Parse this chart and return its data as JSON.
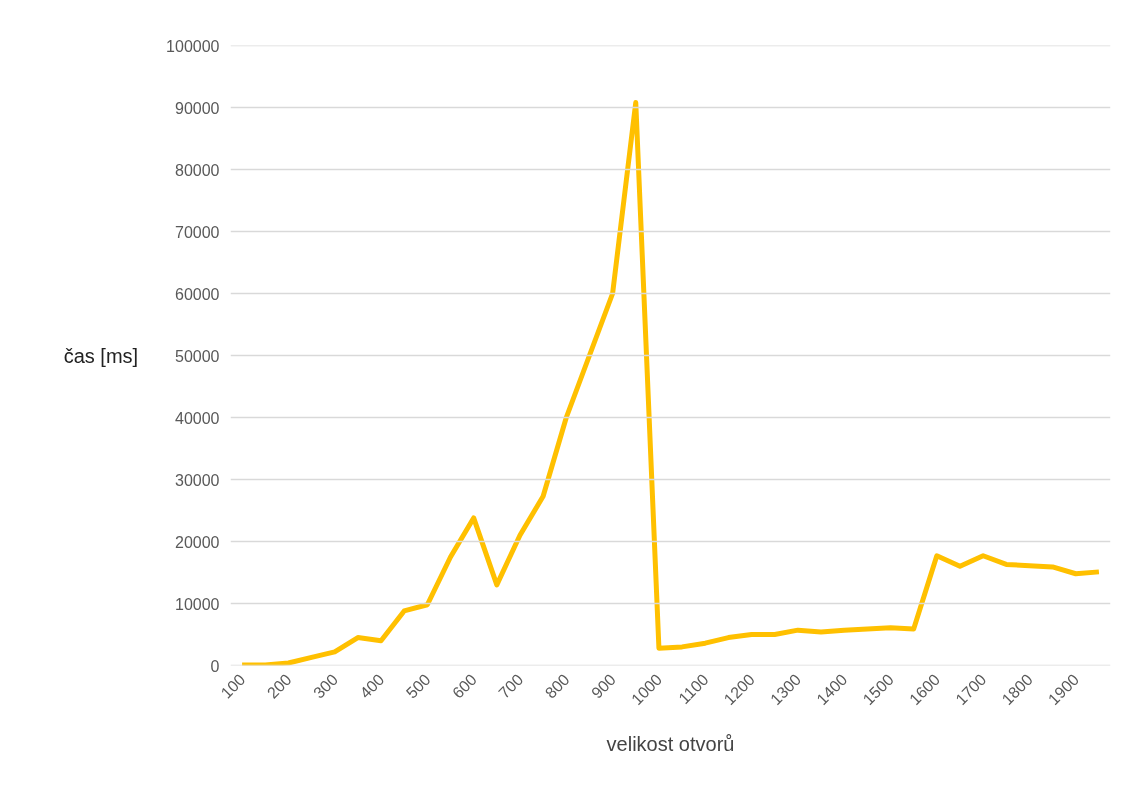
{
  "chart_data": {
    "type": "line",
    "xlabel": "velikost otvorů",
    "ylabel": "čas [ms]",
    "categories": [
      "100",
      null,
      "200",
      null,
      "300",
      null,
      "400",
      null,
      "500",
      null,
      "600",
      null,
      "700",
      null,
      "800",
      null,
      "900",
      null,
      "1000",
      null,
      "1100",
      null,
      "1200",
      null,
      "1300",
      null,
      "1400",
      null,
      "1500",
      null,
      "1600",
      null,
      "1700",
      null,
      "1800",
      null,
      "1900",
      null
    ],
    "series": [
      {
        "color": "#ffc000",
        "values": [
          100,
          100,
          400,
          1300,
          2200,
          4500,
          4000,
          8800,
          9800,
          17500,
          23800,
          13000,
          21000,
          27300,
          40000,
          50000,
          60000,
          90800,
          2800,
          3000,
          3600,
          4500,
          5000,
          5000,
          5700,
          5400,
          5700,
          5900,
          6100,
          5900,
          17700,
          16000,
          17700,
          16300,
          16100,
          15900,
          14800,
          15100
        ]
      }
    ],
    "ylim": [
      0,
      100000
    ],
    "yticks": [
      0,
      10000,
      20000,
      30000,
      40000,
      50000,
      60000,
      70000,
      80000,
      90000,
      100000
    ],
    "grid": "y",
    "marker": "none",
    "line_style": "solid"
  }
}
